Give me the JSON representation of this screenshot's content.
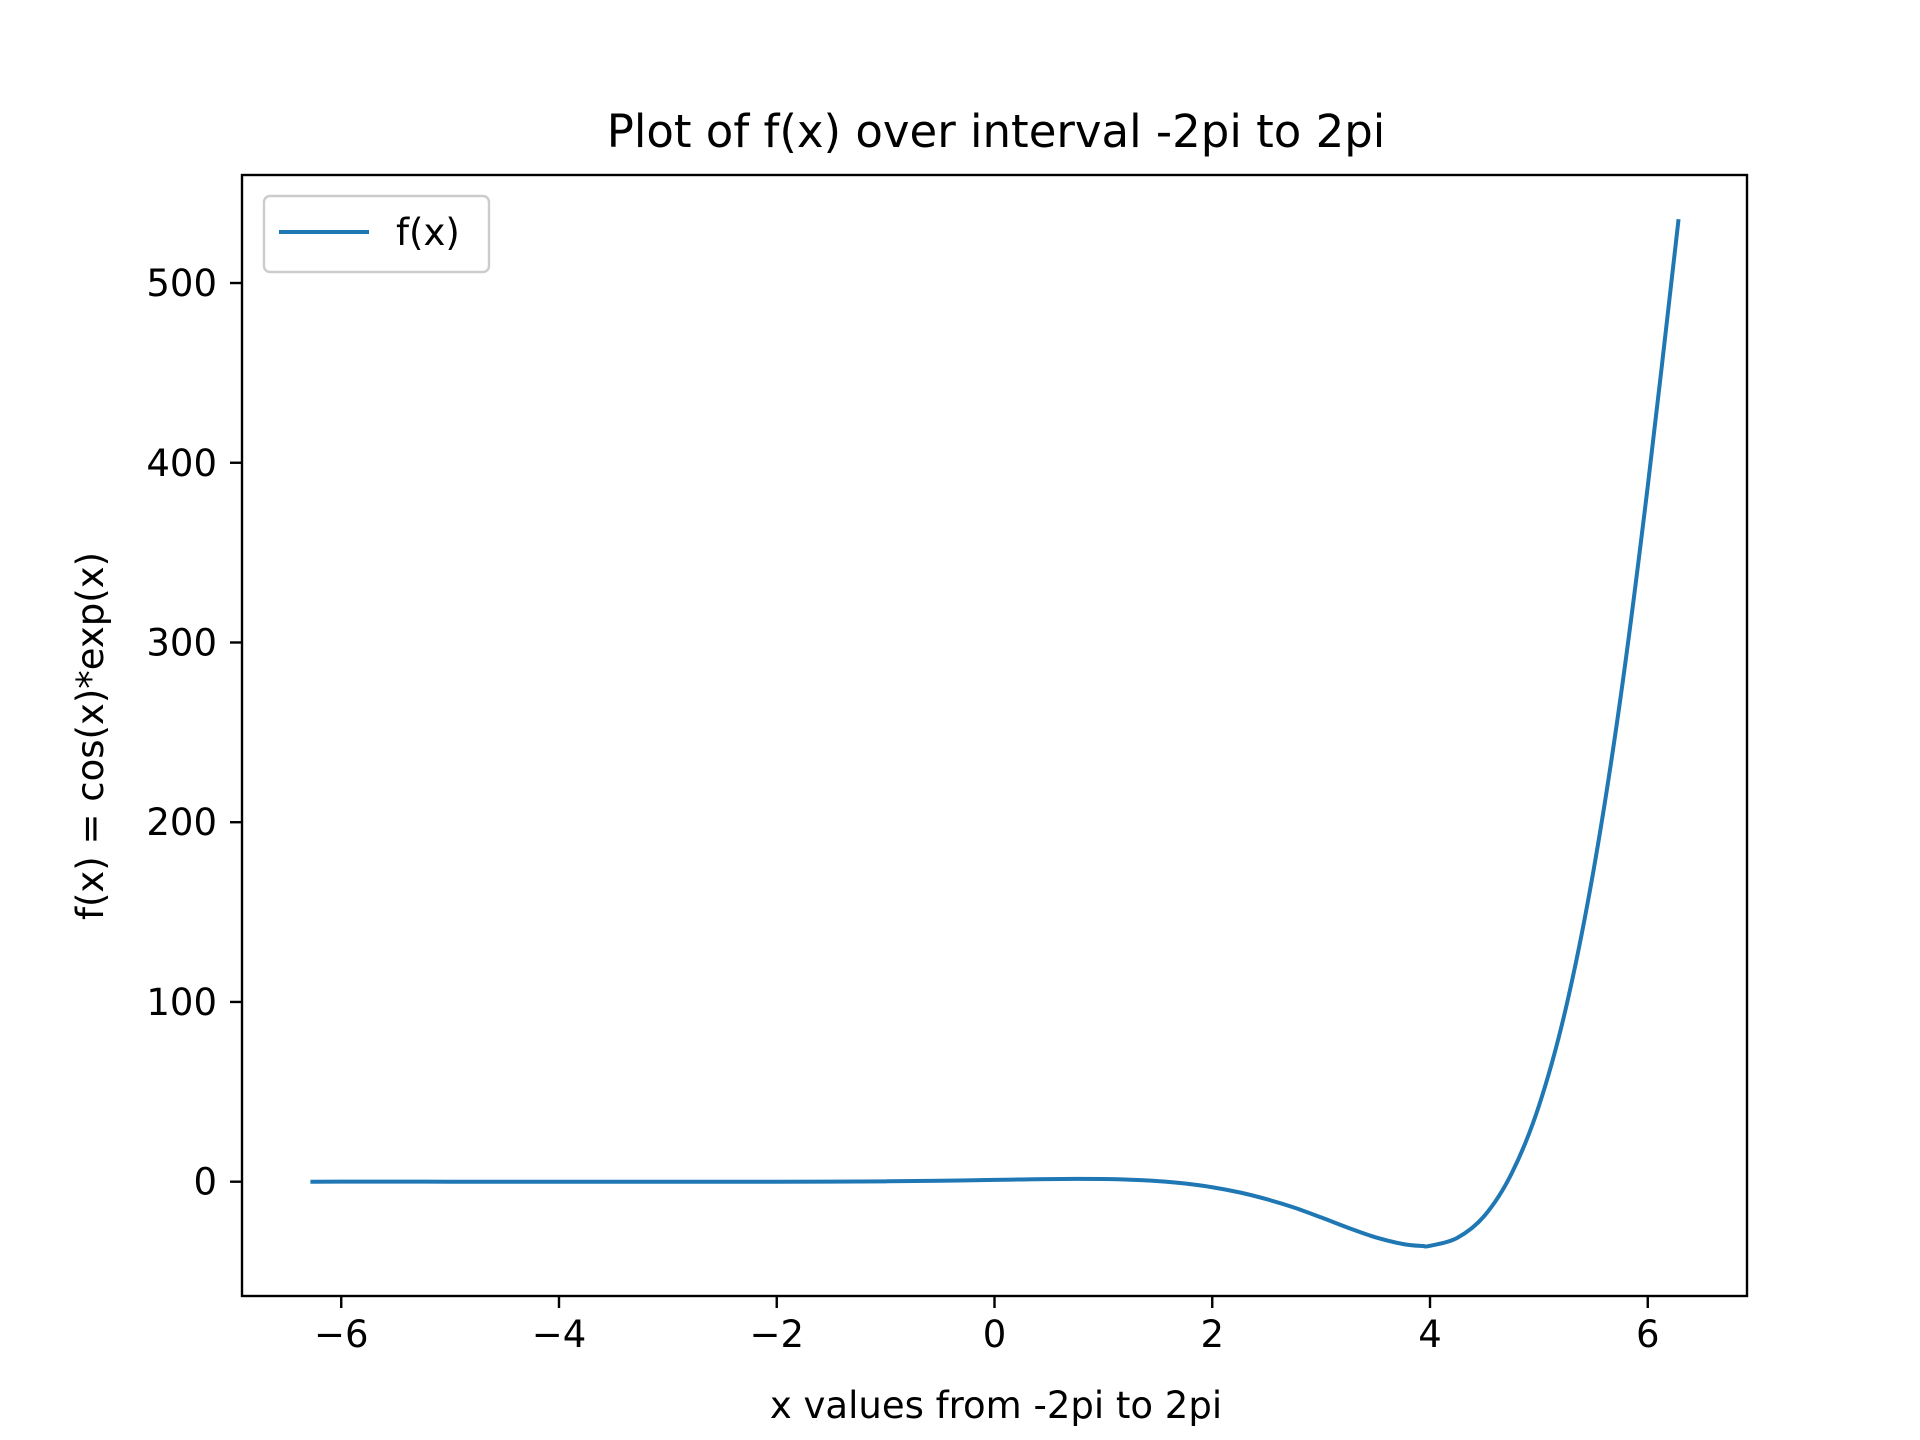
{
  "chart_data": {
    "type": "line",
    "title": "Plot of f(x) over interval -2pi to 2pi",
    "xlabel": "x values from -2pi to 2pi",
    "ylabel": "f(x) = cos(x)*exp(x)",
    "xlim": [
      -6.9115,
      6.9115
    ],
    "ylim": [
      -63.6,
      560.1
    ],
    "xticks": [
      -6,
      -4,
      -2,
      0,
      2,
      4,
      6
    ],
    "xtick_labels": [
      "−6",
      "−4",
      "−2",
      "0",
      "2",
      "4",
      "6"
    ],
    "yticks": [
      0,
      100,
      200,
      300,
      400,
      500
    ],
    "ytick_labels": [
      "0",
      "100",
      "200",
      "300",
      "400",
      "500"
    ],
    "grid": false,
    "legend_position": "upper-left",
    "series": [
      {
        "name": "f(x)",
        "color": "#1f77b4",
        "x": [
          -6.283,
          -6.0,
          -5.5,
          -5.0,
          -4.5,
          -4.0,
          -3.5,
          -3.0,
          -2.5,
          -2.0,
          -1.5,
          -1.0,
          -0.5,
          0.0,
          0.25,
          0.5,
          0.75,
          1.0,
          1.25,
          1.5,
          1.75,
          2.0,
          2.25,
          2.5,
          2.75,
          3.0,
          3.25,
          3.5,
          3.75,
          3.93,
          4.0,
          4.25,
          4.5,
          4.75,
          5.0,
          5.25,
          5.5,
          5.75,
          6.0,
          6.283
        ],
        "y": [
          0.0019,
          0.0024,
          0.0029,
          0.0019,
          -0.0023,
          -0.012,
          -0.028,
          -0.049,
          -0.066,
          -0.056,
          0.016,
          0.199,
          0.532,
          1.0,
          1.244,
          1.447,
          1.546,
          1.469,
          1.101,
          0.317,
          -1.02,
          -3.075,
          -5.955,
          -9.759,
          -14.35,
          -19.885,
          -25.69,
          -30.956,
          -34.656,
          -35.8,
          -35.687,
          -31.291,
          -19.004,
          4.6,
          42.099,
          97.112,
          172.55,
          269.3,
          387.01,
          535.5
        ]
      }
    ]
  }
}
